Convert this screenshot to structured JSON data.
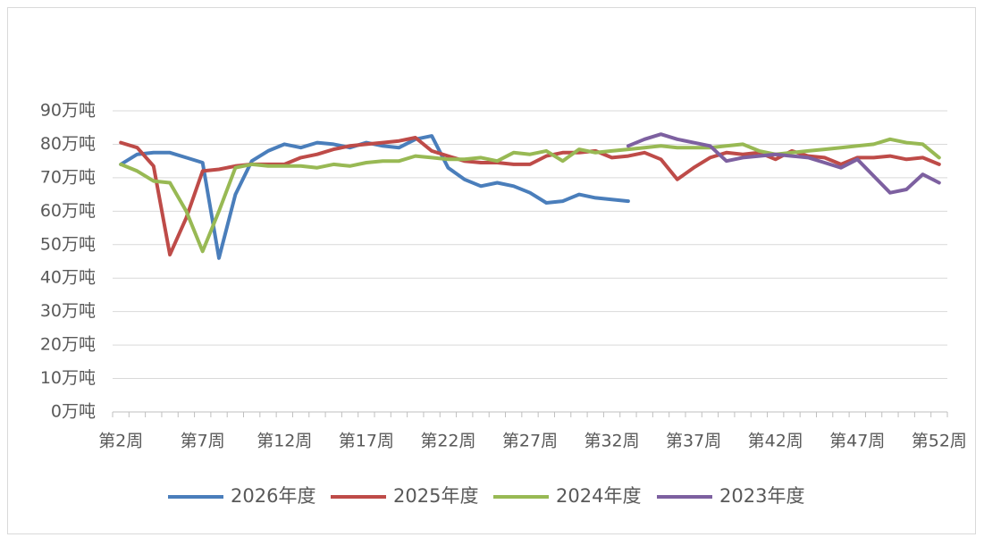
{
  "chart_data": {
    "type": "line",
    "categories": [
      "第2周",
      null,
      null,
      null,
      null,
      "第7周",
      null,
      null,
      null,
      null,
      "第12周",
      null,
      null,
      null,
      null,
      "第17周",
      null,
      null,
      null,
      null,
      "第22周",
      null,
      null,
      null,
      null,
      "第27周",
      null,
      null,
      null,
      null,
      "第32周",
      null,
      null,
      null,
      null,
      "第37周",
      null,
      null,
      null,
      null,
      "第42周",
      null,
      null,
      null,
      null,
      "第47周",
      null,
      null,
      null,
      null,
      "第52周"
    ],
    "series": [
      {
        "name": "2026年度",
        "color": "#4a7ebb",
        "values": [
          74,
          77,
          77.5,
          77.5,
          76,
          74.5,
          46,
          65,
          75,
          78,
          80,
          79,
          80.5,
          80,
          79,
          80.5,
          79.5,
          79,
          81.5,
          82.5,
          73,
          69.5,
          67.5,
          68.5,
          67.5,
          65.5,
          62.5,
          63,
          65,
          64,
          63.5,
          63,
          null,
          null,
          null,
          null,
          null,
          null,
          null,
          null,
          null,
          null,
          null,
          null,
          null,
          null,
          null,
          null,
          null,
          null,
          null
        ]
      },
      {
        "name": "2025年度",
        "color": "#be4b48",
        "values": [
          80.5,
          79,
          73.5,
          47,
          58,
          72,
          72.5,
          73.5,
          74,
          74,
          74,
          76,
          77,
          78.5,
          79.5,
          80,
          80.5,
          81,
          82,
          78,
          76.5,
          75,
          74.5,
          74.5,
          74,
          74,
          76.5,
          77.5,
          77.5,
          78,
          76,
          76.5,
          77.5,
          75.5,
          69.5,
          73,
          76,
          77.5,
          77,
          77.5,
          75.5,
          78,
          76.5,
          76,
          74,
          76,
          76,
          76.5,
          75.5,
          76,
          74
        ]
      },
      {
        "name": "2024年度",
        "color": "#98b954",
        "values": [
          74,
          72,
          69,
          68.5,
          60,
          48,
          60,
          73,
          74,
          73.5,
          73.5,
          73.5,
          73,
          74,
          73.5,
          74.5,
          75,
          75,
          76.5,
          76,
          75.5,
          75.5,
          76,
          75,
          77.5,
          77,
          78,
          75,
          78.5,
          77.5,
          78,
          78.5,
          79,
          79.5,
          79,
          79,
          79,
          79.5,
          80,
          78,
          77,
          77.5,
          78,
          78.5,
          79,
          79.5,
          80,
          81.5,
          80.5,
          80,
          76
        ]
      },
      {
        "name": "2023年度",
        "color": "#7d60a0",
        "values": [
          null,
          null,
          null,
          null,
          null,
          null,
          null,
          null,
          null,
          null,
          null,
          null,
          null,
          null,
          null,
          null,
          null,
          null,
          null,
          null,
          null,
          null,
          null,
          null,
          null,
          null,
          null,
          null,
          null,
          null,
          null,
          79.5,
          81.5,
          83,
          81.5,
          80.5,
          79.5,
          75,
          76,
          76.5,
          77,
          76.5,
          76,
          74.5,
          73,
          75.5,
          70.5,
          65.5,
          66.5,
          71,
          68.5
        ]
      }
    ],
    "ylim": [
      0,
      90
    ],
    "yticks": [
      {
        "value": 0,
        "label": "0万吨"
      },
      {
        "value": 10,
        "label": "10万吨"
      },
      {
        "value": 20,
        "label": "20万吨"
      },
      {
        "value": 30,
        "label": "30万吨"
      },
      {
        "value": 40,
        "label": "40万吨"
      },
      {
        "value": 50,
        "label": "50万吨"
      },
      {
        "value": 60,
        "label": "60万吨"
      },
      {
        "value": 70,
        "label": "70万吨"
      },
      {
        "value": 80,
        "label": "80万吨"
      },
      {
        "value": 90,
        "label": "90万吨"
      }
    ],
    "grid": true
  }
}
